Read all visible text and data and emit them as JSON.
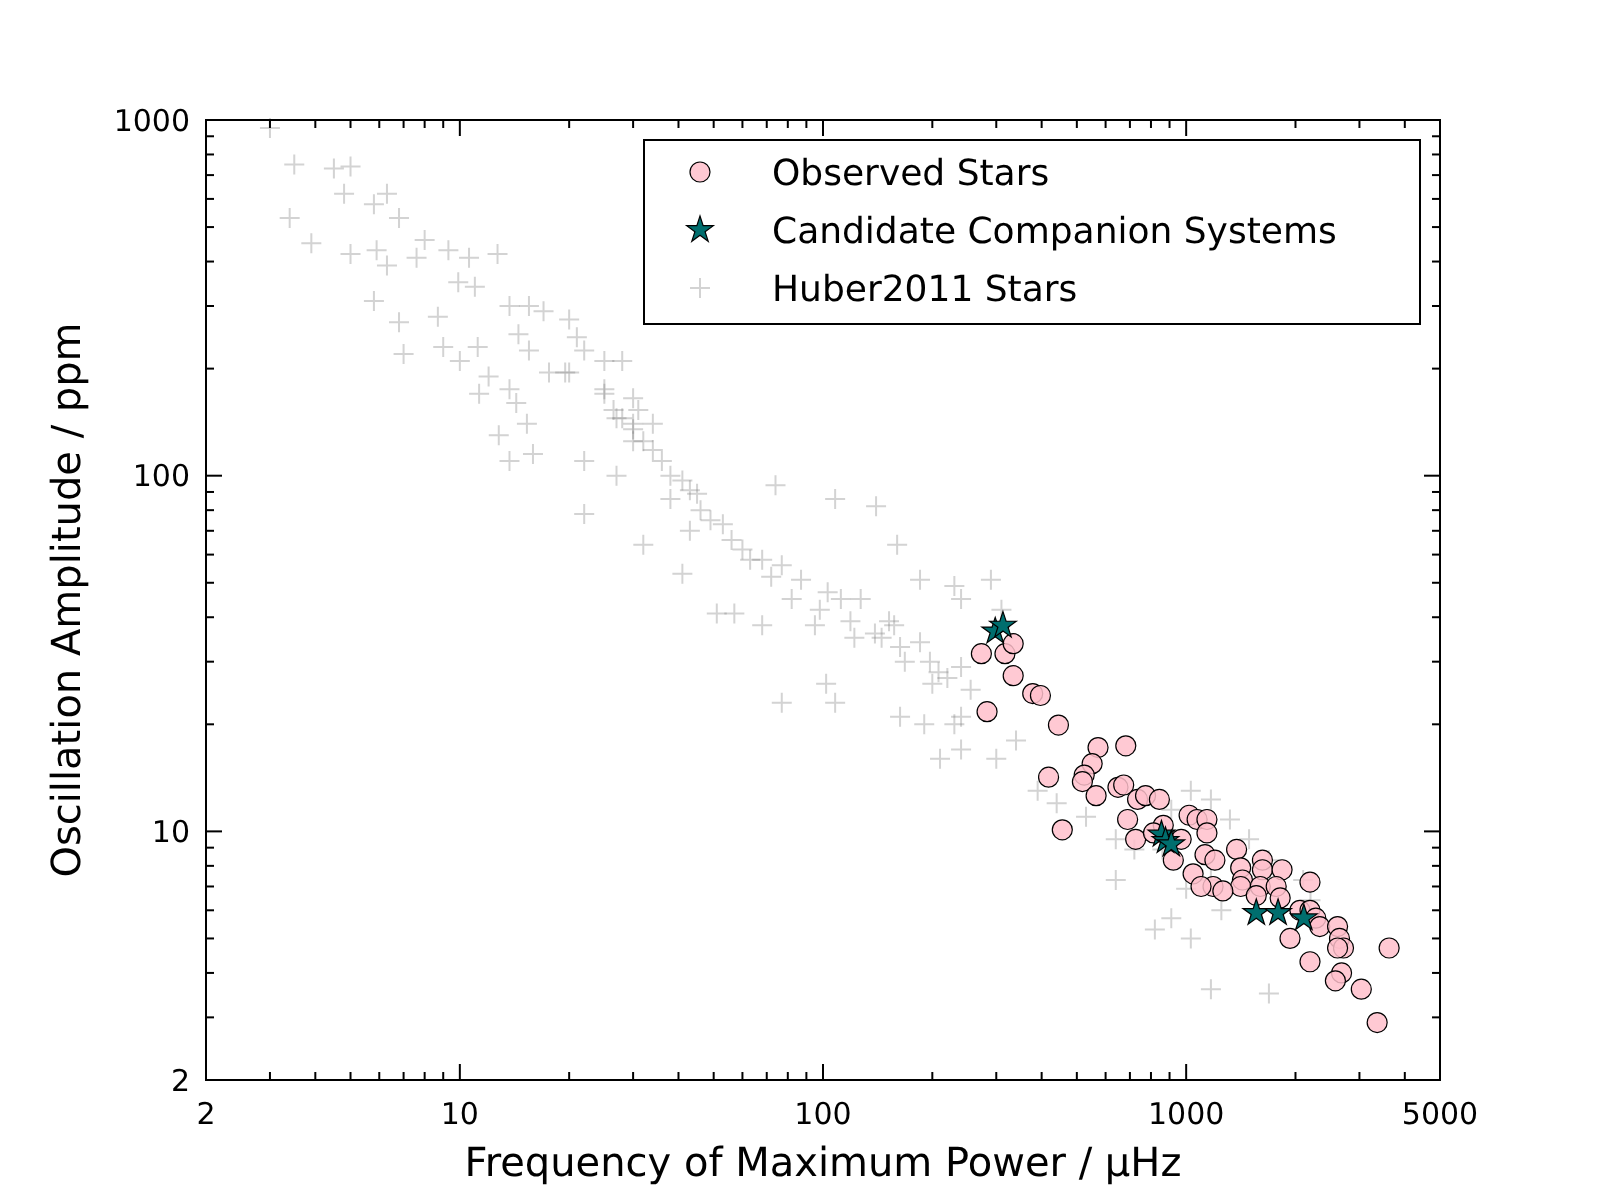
{
  "chart_data": {
    "type": "scatter",
    "xlabel": "Frequency of Maximum Power / μHz",
    "ylabel": "Oscillation Amplitude / ppm",
    "log": "xy",
    "grid": false,
    "legend": "top right",
    "xlim": [
      2,
      5000
    ],
    "ylim": [
      2,
      1000
    ],
    "xticks": [
      2,
      {
        "value": 3,
        "label": null
      },
      {
        "value": 4,
        "label": null
      },
      {
        "value": 5,
        "label": null
      },
      {
        "value": 6,
        "label": null
      },
      {
        "value": 7,
        "label": null
      },
      {
        "value": 8,
        "label": null
      },
      {
        "value": 9,
        "label": null
      },
      10,
      {
        "value": 20,
        "label": null
      },
      {
        "value": 30,
        "label": null
      },
      {
        "value": 40,
        "label": null
      },
      {
        "value": 50,
        "label": null
      },
      {
        "value": 60,
        "label": null
      },
      {
        "value": 70,
        "label": null
      },
      {
        "value": 80,
        "label": null
      },
      {
        "value": 90,
        "label": null
      },
      100,
      {
        "value": 200,
        "label": null
      },
      {
        "value": 300,
        "label": null
      },
      {
        "value": 400,
        "label": null
      },
      {
        "value": 500,
        "label": null
      },
      {
        "value": 600,
        "label": null
      },
      {
        "value": 700,
        "label": null
      },
      {
        "value": 800,
        "label": null
      },
      {
        "value": 900,
        "label": null
      },
      1000,
      {
        "value": 2000,
        "label": null
      },
      {
        "value": 3000,
        "label": null
      },
      {
        "value": 4000,
        "label": null
      },
      5000
    ],
    "yticks": [
      2,
      {
        "value": 3,
        "label": null
      },
      {
        "value": 4,
        "label": null
      },
      {
        "value": 5,
        "label": null
      },
      {
        "value": 6,
        "label": null
      },
      {
        "value": 7,
        "label": null
      },
      {
        "value": 8,
        "label": null
      },
      {
        "value": 9,
        "label": null
      },
      10,
      {
        "value": 20,
        "label": null
      },
      {
        "value": 30,
        "label": null
      },
      {
        "value": 40,
        "label": null
      },
      {
        "value": 50,
        "label": null
      },
      {
        "value": 60,
        "label": null
      },
      {
        "value": 70,
        "label": null
      },
      {
        "value": 80,
        "label": null
      },
      {
        "value": 90,
        "label": null
      },
      100,
      {
        "value": 200,
        "label": null
      },
      {
        "value": 300,
        "label": null
      },
      {
        "value": 400,
        "label": null
      },
      {
        "value": 500,
        "label": null
      },
      {
        "value": 600,
        "label": null
      },
      {
        "value": 700,
        "label": null
      },
      {
        "value": 800,
        "label": null
      },
      {
        "value": 900,
        "label": null
      },
      1000
    ],
    "series": [
      {
        "name": "Observed Stars",
        "color": "#ffc0cb",
        "marker": "circle",
        "x": [
          273,
          317,
          334,
          334,
          283,
          378,
          397,
          445,
          572,
          682,
          551,
          524,
          518,
          418,
          565,
          649,
          673,
          735,
          773,
          844,
          690,
          726,
          456,
          865,
          813,
          969,
          1019,
          1072,
          1141,
          1141,
          922,
          1045,
          1127,
          1200,
          1377,
          1413,
          1429,
          1413,
          1186,
          1099,
          1262,
          1622,
          1622,
          1837,
          1600,
          1770,
          1815,
          1560,
          2193,
          2057,
          2193,
          2275,
          2333,
          2612,
          2644,
          2712,
          2612,
          1932,
          2193,
          2679,
          2576,
          3036,
          3622,
          3357
        ],
        "values": [
          31.6,
          31.6,
          33.7,
          27.4,
          21.7,
          24.4,
          24.1,
          19.9,
          17.2,
          17.4,
          15.5,
          14.4,
          13.8,
          14.2,
          12.6,
          13.3,
          13.5,
          12.3,
          12.6,
          12.3,
          10.8,
          9.5,
          10.1,
          10.4,
          9.9,
          9.5,
          11.1,
          10.8,
          10.8,
          9.9,
          8.3,
          7.6,
          8.6,
          8.3,
          8.9,
          7.9,
          7.3,
          7.0,
          7.0,
          7.0,
          6.8,
          8.3,
          7.8,
          7.8,
          7.0,
          7.0,
          6.5,
          6.6,
          7.2,
          6.0,
          6.0,
          5.7,
          5.4,
          5.4,
          5.0,
          4.7,
          4.7,
          5.0,
          4.3,
          4.0,
          3.8,
          3.6,
          4.7,
          2.9
        ]
      },
      {
        "name": "Candidate Companion Systems",
        "color": "#006e6e",
        "marker": "star",
        "x": [
          298,
          313,
          855,
          877,
          910,
          1560,
          1791,
          2109
        ],
        "values": [
          36.5,
          37.9,
          9.8,
          9.4,
          9.2,
          5.9,
          5.9,
          5.7
        ]
      },
      {
        "name": "Huber2011 Stars",
        "color": "#808080",
        "marker": "cross",
        "x": [
          3.0,
          3.5,
          4.5,
          5.0,
          4.8,
          6.3,
          3.4,
          3.9,
          5.8,
          6.8,
          5.0,
          5.9,
          6.3,
          7.6,
          8.0,
          9.3,
          10.6,
          12.7,
          9.9,
          11,
          8.7,
          7.0,
          5.8,
          6.8,
          9.0,
          10,
          11.2,
          13.7,
          15.5,
          14.5,
          15.5,
          17,
          12,
          11.3,
          13.7,
          14.3,
          15.3,
          12.8,
          13.7,
          15.9,
          17.6,
          20,
          21,
          22,
          20,
          25,
          28,
          25,
          27,
          30,
          22,
          27,
          22,
          30,
          19.5,
          30,
          45,
          68,
          103,
          157,
          240,
          32,
          41,
          51,
          74,
          108,
          140,
          160,
          230,
          77,
          102,
          108,
          163,
          190,
          230,
          95,
          68,
          57,
          122,
          168,
          200,
          139,
          240,
          25,
          26.5,
          28,
          30,
          32,
          34,
          36,
          31,
          34,
          38,
          41,
          43,
          38,
          46,
          49,
          53,
          56,
          43,
          60,
          63,
          72,
          77,
          87,
          82,
          98,
          112,
          119,
          127,
          145,
          152,
          163,
          185,
          197,
          208,
          220,
          255,
          240,
          210,
          300,
          340,
          390,
          440,
          530,
          640,
          720,
          860,
          910,
          1030,
          1170,
          1320,
          1490,
          1690,
          1170,
          1000,
          910,
          1030,
          820,
          640,
          1170,
          1690,
          1250,
          2100,
          2200,
          310,
          240,
          185,
          290
        ],
        "values": [
          950,
          750,
          730,
          740,
          620,
          620,
          530,
          450,
          580,
          530,
          420,
          430,
          390,
          410,
          460,
          430,
          410,
          420,
          350,
          340,
          280,
          220,
          310,
          270,
          230,
          210,
          230,
          300,
          300,
          250,
          225,
          290,
          190,
          170,
          175,
          160,
          140,
          130,
          110,
          115,
          195,
          275,
          245,
          225,
          195,
          210,
          210,
          170,
          145,
          125,
          110,
          100,
          78,
          165,
          195,
          140,
          89,
          58,
          47,
          38,
          29,
          64,
          53,
          41,
          94,
          86,
          82,
          64,
          49,
          23,
          26,
          23,
          21,
          20,
          20,
          38,
          38,
          41,
          35,
          30,
          26,
          36,
          17,
          175,
          153,
          145,
          135,
          125,
          118,
          110,
          153,
          140,
          100,
          97,
          91,
          86,
          80,
          75,
          73,
          66,
          70,
          62,
          58,
          52,
          56,
          51,
          45,
          42,
          45,
          39,
          45,
          35,
          39,
          33,
          34,
          30,
          28,
          27,
          25,
          21,
          16,
          16,
          18,
          13,
          12,
          11,
          9.5,
          8.9,
          8.9,
          11.5,
          13,
          12.3,
          10.8,
          9.5,
          8.3,
          7.3,
          6.9,
          5.7,
          5.0,
          5.3,
          7.3,
          3.6,
          3.5,
          6.0,
          7.3,
          6.4,
          42,
          45,
          51,
          51
        ]
      }
    ]
  }
}
